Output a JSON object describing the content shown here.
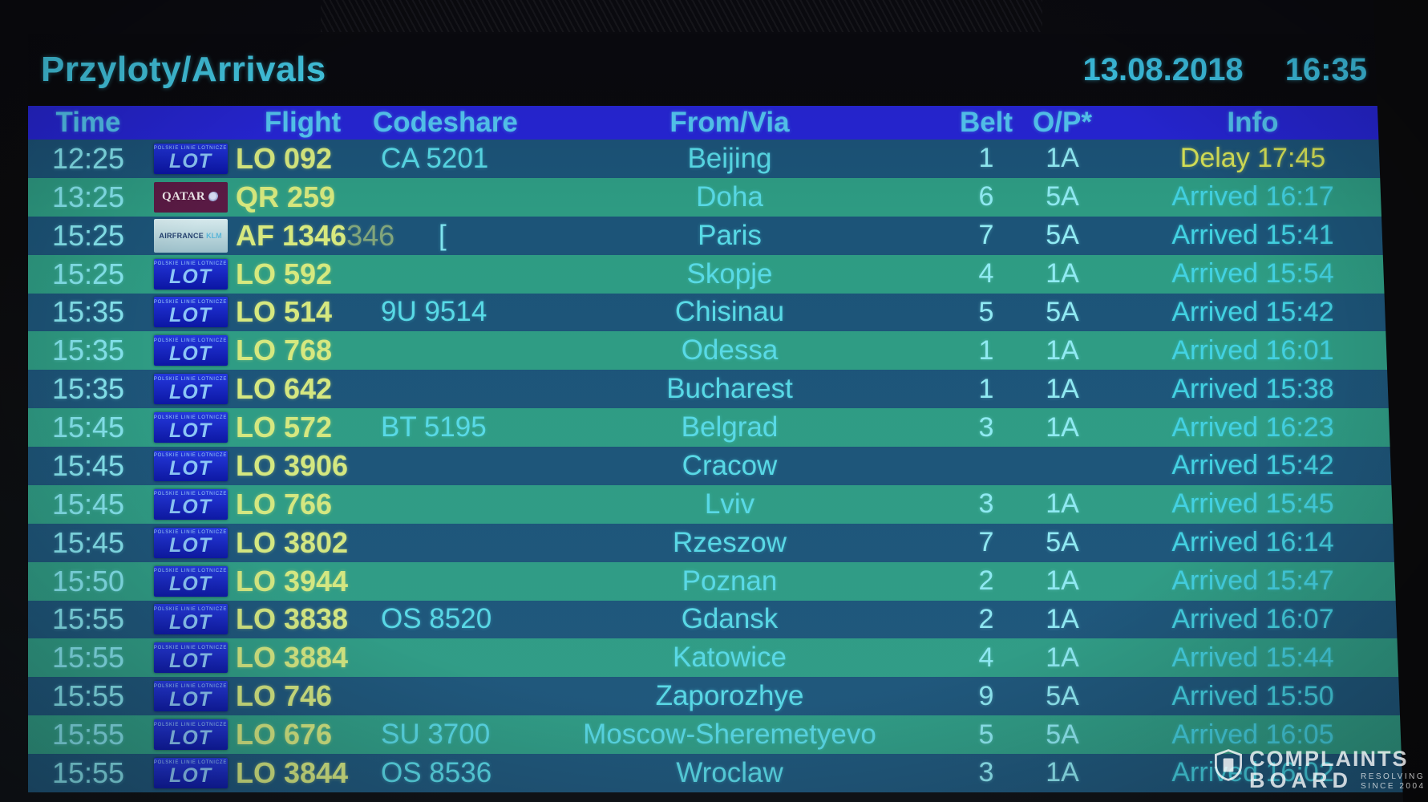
{
  "board": {
    "title": "Przyloty/Arrivals",
    "date": "13.08.2018",
    "time": "16:35",
    "columns": [
      "Time",
      "Flight",
      "Codeshare",
      "From/Via",
      "Belt",
      "O/P*",
      "Info"
    ],
    "rows": [
      {
        "time": "12:25",
        "airline": "lot",
        "flight": "LO 092",
        "codeshare": "CA 5201",
        "from": "Beijing",
        "belt": "1",
        "op": "1A",
        "info": "Delay 17:45",
        "status": "delay"
      },
      {
        "time": "13:25",
        "airline": "qatar",
        "flight": "QR 259",
        "codeshare": "",
        "from": "Doha",
        "belt": "6",
        "op": "5A",
        "info": "Arrived 16:17",
        "status": "arrived"
      },
      {
        "time": "15:25",
        "airline": "afklm",
        "flight": "AF 1346",
        "flight_ghost": "346",
        "codeshare": "",
        "artifact": "[",
        "from": "Paris",
        "belt": "7",
        "op": "5A",
        "info": "Arrived 15:41",
        "status": "arrived"
      },
      {
        "time": "15:25",
        "airline": "lot",
        "flight": "LO 592",
        "codeshare": "",
        "from": "Skopje",
        "belt": "4",
        "op": "1A",
        "info": "Arrived 15:54",
        "status": "arrived"
      },
      {
        "time": "15:35",
        "airline": "lot",
        "flight": "LO 514",
        "codeshare": "9U 9514",
        "from": "Chisinau",
        "belt": "5",
        "op": "5A",
        "info": "Arrived 15:42",
        "status": "arrived"
      },
      {
        "time": "15:35",
        "airline": "lot",
        "flight": "LO 768",
        "codeshare": "",
        "from": "Odessa",
        "belt": "1",
        "op": "1A",
        "info": "Arrived 16:01",
        "status": "arrived"
      },
      {
        "time": "15:35",
        "airline": "lot",
        "flight": "LO 642",
        "codeshare": "",
        "from": "Bucharest",
        "belt": "1",
        "op": "1A",
        "info": "Arrived 15:38",
        "status": "arrived"
      },
      {
        "time": "15:45",
        "airline": "lot",
        "flight": "LO 572",
        "codeshare": "BT 5195",
        "from": "Belgrad",
        "belt": "3",
        "op": "1A",
        "info": "Arrived 16:23",
        "status": "arrived"
      },
      {
        "time": "15:45",
        "airline": "lot",
        "flight": "LO 3906",
        "codeshare": "",
        "from": "Cracow",
        "belt": "",
        "op": "",
        "info": "Arrived 15:42",
        "status": "arrived"
      },
      {
        "time": "15:45",
        "airline": "lot",
        "flight": "LO 766",
        "codeshare": "",
        "from": "Lviv",
        "belt": "3",
        "op": "1A",
        "info": "Arrived 15:45",
        "status": "arrived"
      },
      {
        "time": "15:45",
        "airline": "lot",
        "flight": "LO 3802",
        "codeshare": "",
        "from": "Rzeszow",
        "belt": "7",
        "op": "5A",
        "info": "Arrived 16:14",
        "status": "arrived"
      },
      {
        "time": "15:50",
        "airline": "lot",
        "flight": "LO 3944",
        "codeshare": "",
        "from": "Poznan",
        "belt": "2",
        "op": "1A",
        "info": "Arrived 15:47",
        "status": "arrived"
      },
      {
        "time": "15:55",
        "airline": "lot",
        "flight": "LO 3838",
        "codeshare": "OS 8520",
        "from": "Gdansk",
        "belt": "2",
        "op": "1A",
        "info": "Arrived 16:07",
        "status": "arrived"
      },
      {
        "time": "15:55",
        "airline": "lot",
        "flight": "LO 3884",
        "codeshare": "",
        "from": "Katowice",
        "belt": "4",
        "op": "1A",
        "info": "Arrived 15:44",
        "status": "arrived"
      },
      {
        "time": "15:55",
        "airline": "lot",
        "flight": "LO 746",
        "codeshare": "",
        "from": "Zaporozhye",
        "belt": "9",
        "op": "5A",
        "info": "Arrived 15:50",
        "status": "arrived"
      },
      {
        "time": "15:55",
        "airline": "lot",
        "flight": "LO 676",
        "codeshare": "SU 3700",
        "from": "Moscow-Sheremetyevo",
        "belt": "5",
        "op": "5A",
        "info": "Arrived 16:05",
        "status": "arrived"
      },
      {
        "time": "15:55",
        "airline": "lot",
        "flight": "LO 3844",
        "codeshare": "OS 8536",
        "from": "Wroclaw",
        "belt": "3",
        "op": "1A",
        "info": "Arrived 16:02",
        "status": "arrived"
      }
    ]
  },
  "logos": {
    "lot": {
      "label": "LOT",
      "sub": "POLSKIE LINIE LOTNICZE"
    },
    "qatar": {
      "label": "QATAR"
    },
    "afklm": {
      "label": "AIRFRANCE",
      "label2": "KLM"
    }
  },
  "watermark": {
    "line1": "COMPLAINTS",
    "line2": "BOARD",
    "sub1": "RESOLVING",
    "sub2": "SINCE 2004"
  },
  "colors": {
    "header_bar": "#2726d6",
    "row_dark": "#1C5478",
    "row_green": "#2E9C83",
    "flight_text": "#D7E97E",
    "delay_text": "#D9E557",
    "cyan_text": "#58DAE6",
    "time_text": "#86E7F0",
    "belt_text": "#90EBF3",
    "info_text": "#42D2E2",
    "title_text": "#46D2EC",
    "header_text": "#55C8F2"
  }
}
